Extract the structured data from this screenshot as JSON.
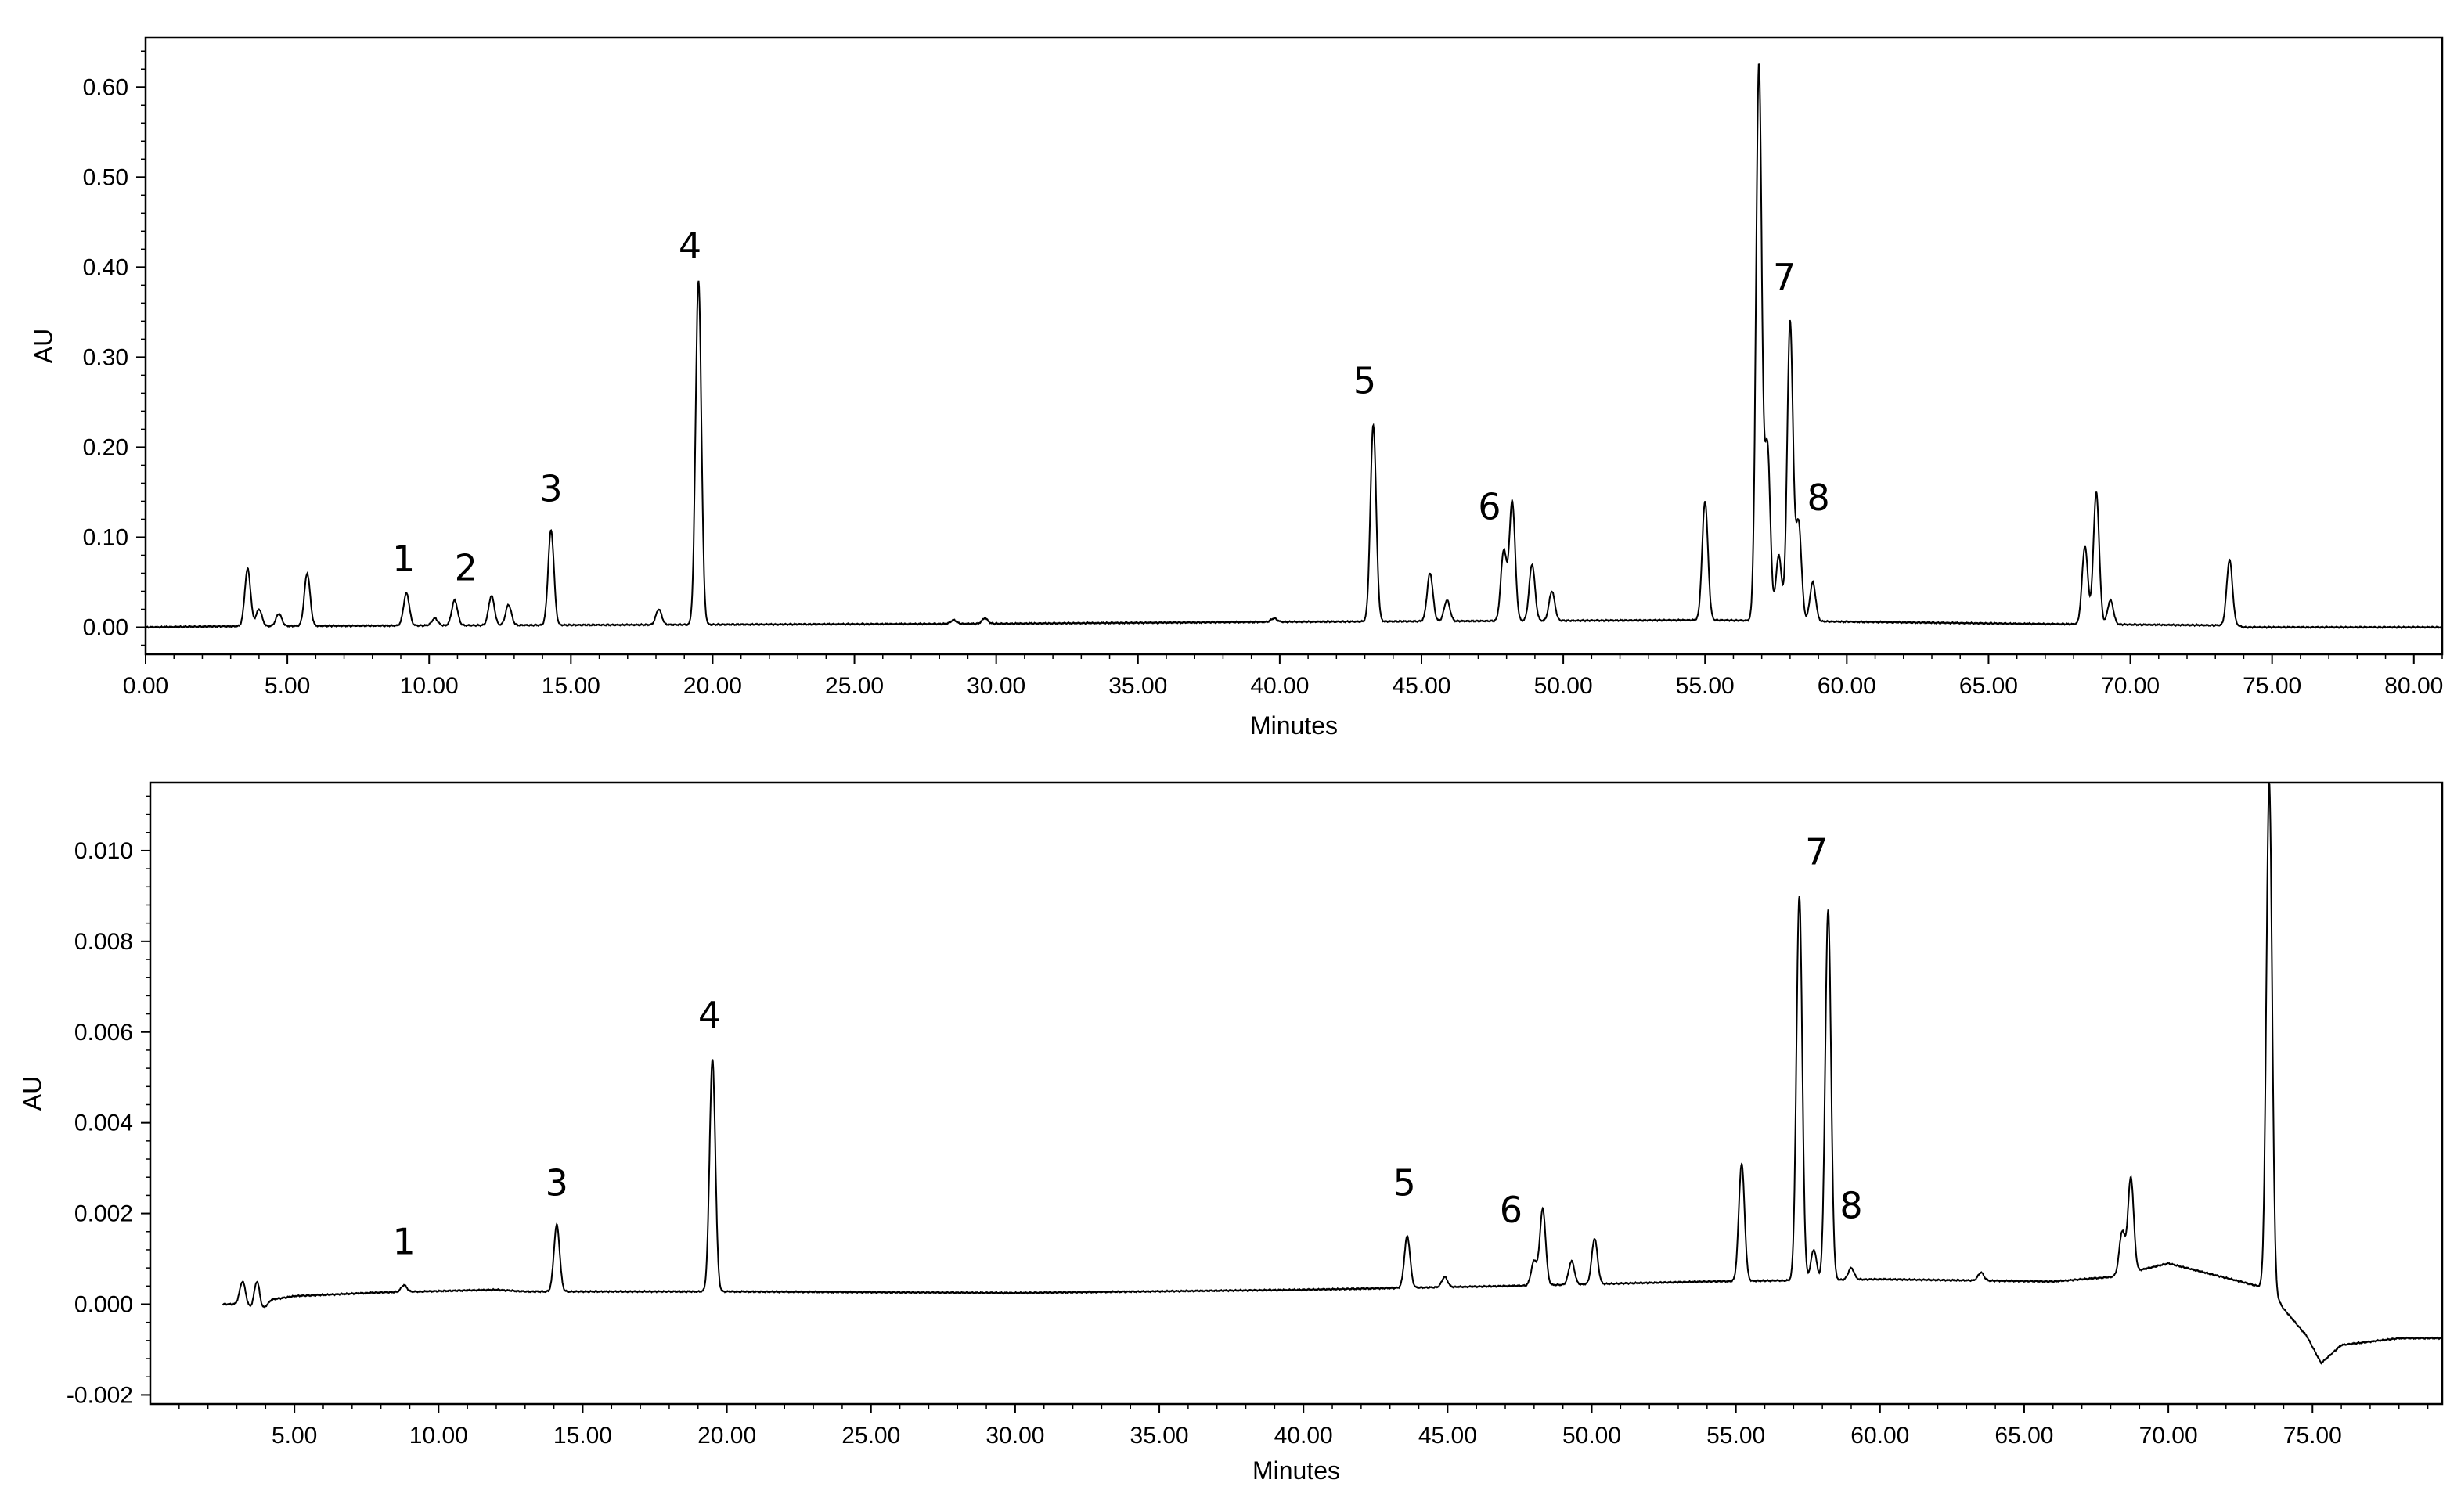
{
  "chart_data": [
    {
      "type": "line",
      "xlabel": "Minutes",
      "ylabel": "AU",
      "xlim": [
        0,
        81
      ],
      "ylim": [
        -0.03,
        0.655
      ],
      "grid": false,
      "legend": "none",
      "x_ticks": [
        "0.00",
        "5.00",
        "10.00",
        "15.00",
        "20.00",
        "25.00",
        "30.00",
        "35.00",
        "40.00",
        "45.00",
        "50.00",
        "55.00",
        "60.00",
        "65.00",
        "70.00",
        "75.00",
        "80.00"
      ],
      "y_ticks": [
        "0.00",
        "0.10",
        "0.20",
        "0.30",
        "0.40",
        "0.50",
        "0.60"
      ],
      "baseline": [
        [
          0,
          0
        ],
        [
          2.5,
          0.001
        ],
        [
          10,
          0.002
        ],
        [
          20,
          0.003
        ],
        [
          30,
          0.004
        ],
        [
          40,
          0.006
        ],
        [
          55,
          0.008
        ],
        [
          66,
          0.004
        ],
        [
          73.8,
          0.002
        ],
        [
          74,
          0
        ],
        [
          81,
          0
        ]
      ],
      "peaks": [
        {
          "x": 3.6,
          "y": 0.065
        },
        {
          "x": 4.0,
          "y": 0.02
        },
        {
          "x": 4.7,
          "y": 0.015
        },
        {
          "x": 5.7,
          "y": 0.06
        },
        {
          "x": 9.2,
          "y": 0.038
        },
        {
          "x": 10.2,
          "y": 0.01
        },
        {
          "x": 10.9,
          "y": 0.03
        },
        {
          "x": 12.2,
          "y": 0.035
        },
        {
          "x": 12.8,
          "y": 0.025
        },
        {
          "x": 14.3,
          "y": 0.108
        },
        {
          "x": 18.1,
          "y": 0.02
        },
        {
          "x": 19.5,
          "y": 0.385
        },
        {
          "x": 28.5,
          "y": 0.008
        },
        {
          "x": 29.6,
          "y": 0.01
        },
        {
          "x": 39.8,
          "y": 0.01
        },
        {
          "x": 43.3,
          "y": 0.225
        },
        {
          "x": 45.3,
          "y": 0.06
        },
        {
          "x": 45.9,
          "y": 0.03
        },
        {
          "x": 47.9,
          "y": 0.085
        },
        {
          "x": 48.2,
          "y": 0.14
        },
        {
          "x": 48.9,
          "y": 0.07
        },
        {
          "x": 49.6,
          "y": 0.04
        },
        {
          "x": 55.0,
          "y": 0.14
        },
        {
          "x": 56.9,
          "y": 0.625
        },
        {
          "x": 57.2,
          "y": 0.2
        },
        {
          "x": 57.6,
          "y": 0.08
        },
        {
          "x": 58.0,
          "y": 0.34
        },
        {
          "x": 58.3,
          "y": 0.115
        },
        {
          "x": 58.8,
          "y": 0.05
        },
        {
          "x": 68.4,
          "y": 0.09
        },
        {
          "x": 68.8,
          "y": 0.15
        },
        {
          "x": 69.3,
          "y": 0.03
        },
        {
          "x": 73.5,
          "y": 0.075
        }
      ],
      "annotations": [
        {
          "text": "1",
          "x": 9.1,
          "y": 0.062
        },
        {
          "text": "2",
          "x": 11.3,
          "y": 0.052
        },
        {
          "text": "3",
          "x": 14.3,
          "y": 0.14
        },
        {
          "text": "4",
          "x": 19.2,
          "y": 0.41
        },
        {
          "text": "5",
          "x": 43.0,
          "y": 0.26
        },
        {
          "text": "6",
          "x": 47.4,
          "y": 0.12
        },
        {
          "text": "7",
          "x": 57.8,
          "y": 0.375
        },
        {
          "text": "8",
          "x": 59.0,
          "y": 0.13
        }
      ]
    },
    {
      "type": "line",
      "xlabel": "Minutes",
      "ylabel": "AU",
      "xlim": [
        0,
        79.5
      ],
      "ylim": [
        -0.0022,
        0.0115
      ],
      "grid": false,
      "legend": "none",
      "x_ticks": [
        "5.00",
        "10.00",
        "15.00",
        "20.00",
        "25.00",
        "30.00",
        "35.00",
        "40.00",
        "45.00",
        "50.00",
        "55.00",
        "60.00",
        "65.00",
        "70.00",
        "75.00"
      ],
      "y_ticks": [
        "-0.002",
        "0.000",
        "0.002",
        "0.004",
        "0.006",
        "0.008",
        "0.010"
      ],
      "baseline": [
        [
          2.5,
          0
        ],
        [
          3.2,
          0
        ],
        [
          3.8,
          -0.0002
        ],
        [
          4.2,
          0.0001
        ],
        [
          5,
          0.00018
        ],
        [
          8,
          0.00026
        ],
        [
          12,
          0.00032
        ],
        [
          13,
          0.00028
        ],
        [
          20,
          0.00028
        ],
        [
          30,
          0.00025
        ],
        [
          40,
          0.00032
        ],
        [
          47,
          0.0004
        ],
        [
          54,
          0.0005
        ],
        [
          60,
          0.00055
        ],
        [
          66,
          0.0005
        ],
        [
          68,
          0.0006
        ],
        [
          70,
          0.0009
        ],
        [
          72.5,
          0.0005
        ],
        [
          73.4,
          0.00035
        ],
        [
          73.6,
          0.0003
        ],
        [
          74,
          -0.0001
        ],
        [
          74.8,
          -0.0007
        ],
        [
          75.3,
          -0.0013
        ],
        [
          76,
          -0.0009
        ],
        [
          78,
          -0.00075
        ],
        [
          79.5,
          -0.00075
        ]
      ],
      "peaks": [
        {
          "x": 3.2,
          "y": 0.0005
        },
        {
          "x": 3.7,
          "y": 0.0005
        },
        {
          "x": 8.8,
          "y": 0.00042
        },
        {
          "x": 14.1,
          "y": 0.00175
        },
        {
          "x": 19.5,
          "y": 0.0054
        },
        {
          "x": 43.6,
          "y": 0.0015
        },
        {
          "x": 44.9,
          "y": 0.0006
        },
        {
          "x": 48.0,
          "y": 0.00095
        },
        {
          "x": 48.3,
          "y": 0.0021
        },
        {
          "x": 49.3,
          "y": 0.00095
        },
        {
          "x": 50.1,
          "y": 0.00145
        },
        {
          "x": 55.2,
          "y": 0.0031
        },
        {
          "x": 57.2,
          "y": 0.009
        },
        {
          "x": 57.7,
          "y": 0.0012
        },
        {
          "x": 58.2,
          "y": 0.0087
        },
        {
          "x": 59.0,
          "y": 0.0008
        },
        {
          "x": 63.5,
          "y": 0.0007
        },
        {
          "x": 68.4,
          "y": 0.0016
        },
        {
          "x": 68.7,
          "y": 0.0028
        },
        {
          "x": 73.5,
          "y": 0.0115
        }
      ],
      "annotations": [
        {
          "text": "1",
          "x": 8.8,
          "y": 0.0011
        },
        {
          "text": "3",
          "x": 14.1,
          "y": 0.0024
        },
        {
          "text": "4",
          "x": 19.4,
          "y": 0.0061
        },
        {
          "text": "5",
          "x": 43.5,
          "y": 0.0024
        },
        {
          "text": "6",
          "x": 47.2,
          "y": 0.0018
        },
        {
          "text": "7",
          "x": 57.8,
          "y": 0.0097
        },
        {
          "text": "8",
          "x": 59.0,
          "y": 0.0019
        }
      ]
    }
  ]
}
